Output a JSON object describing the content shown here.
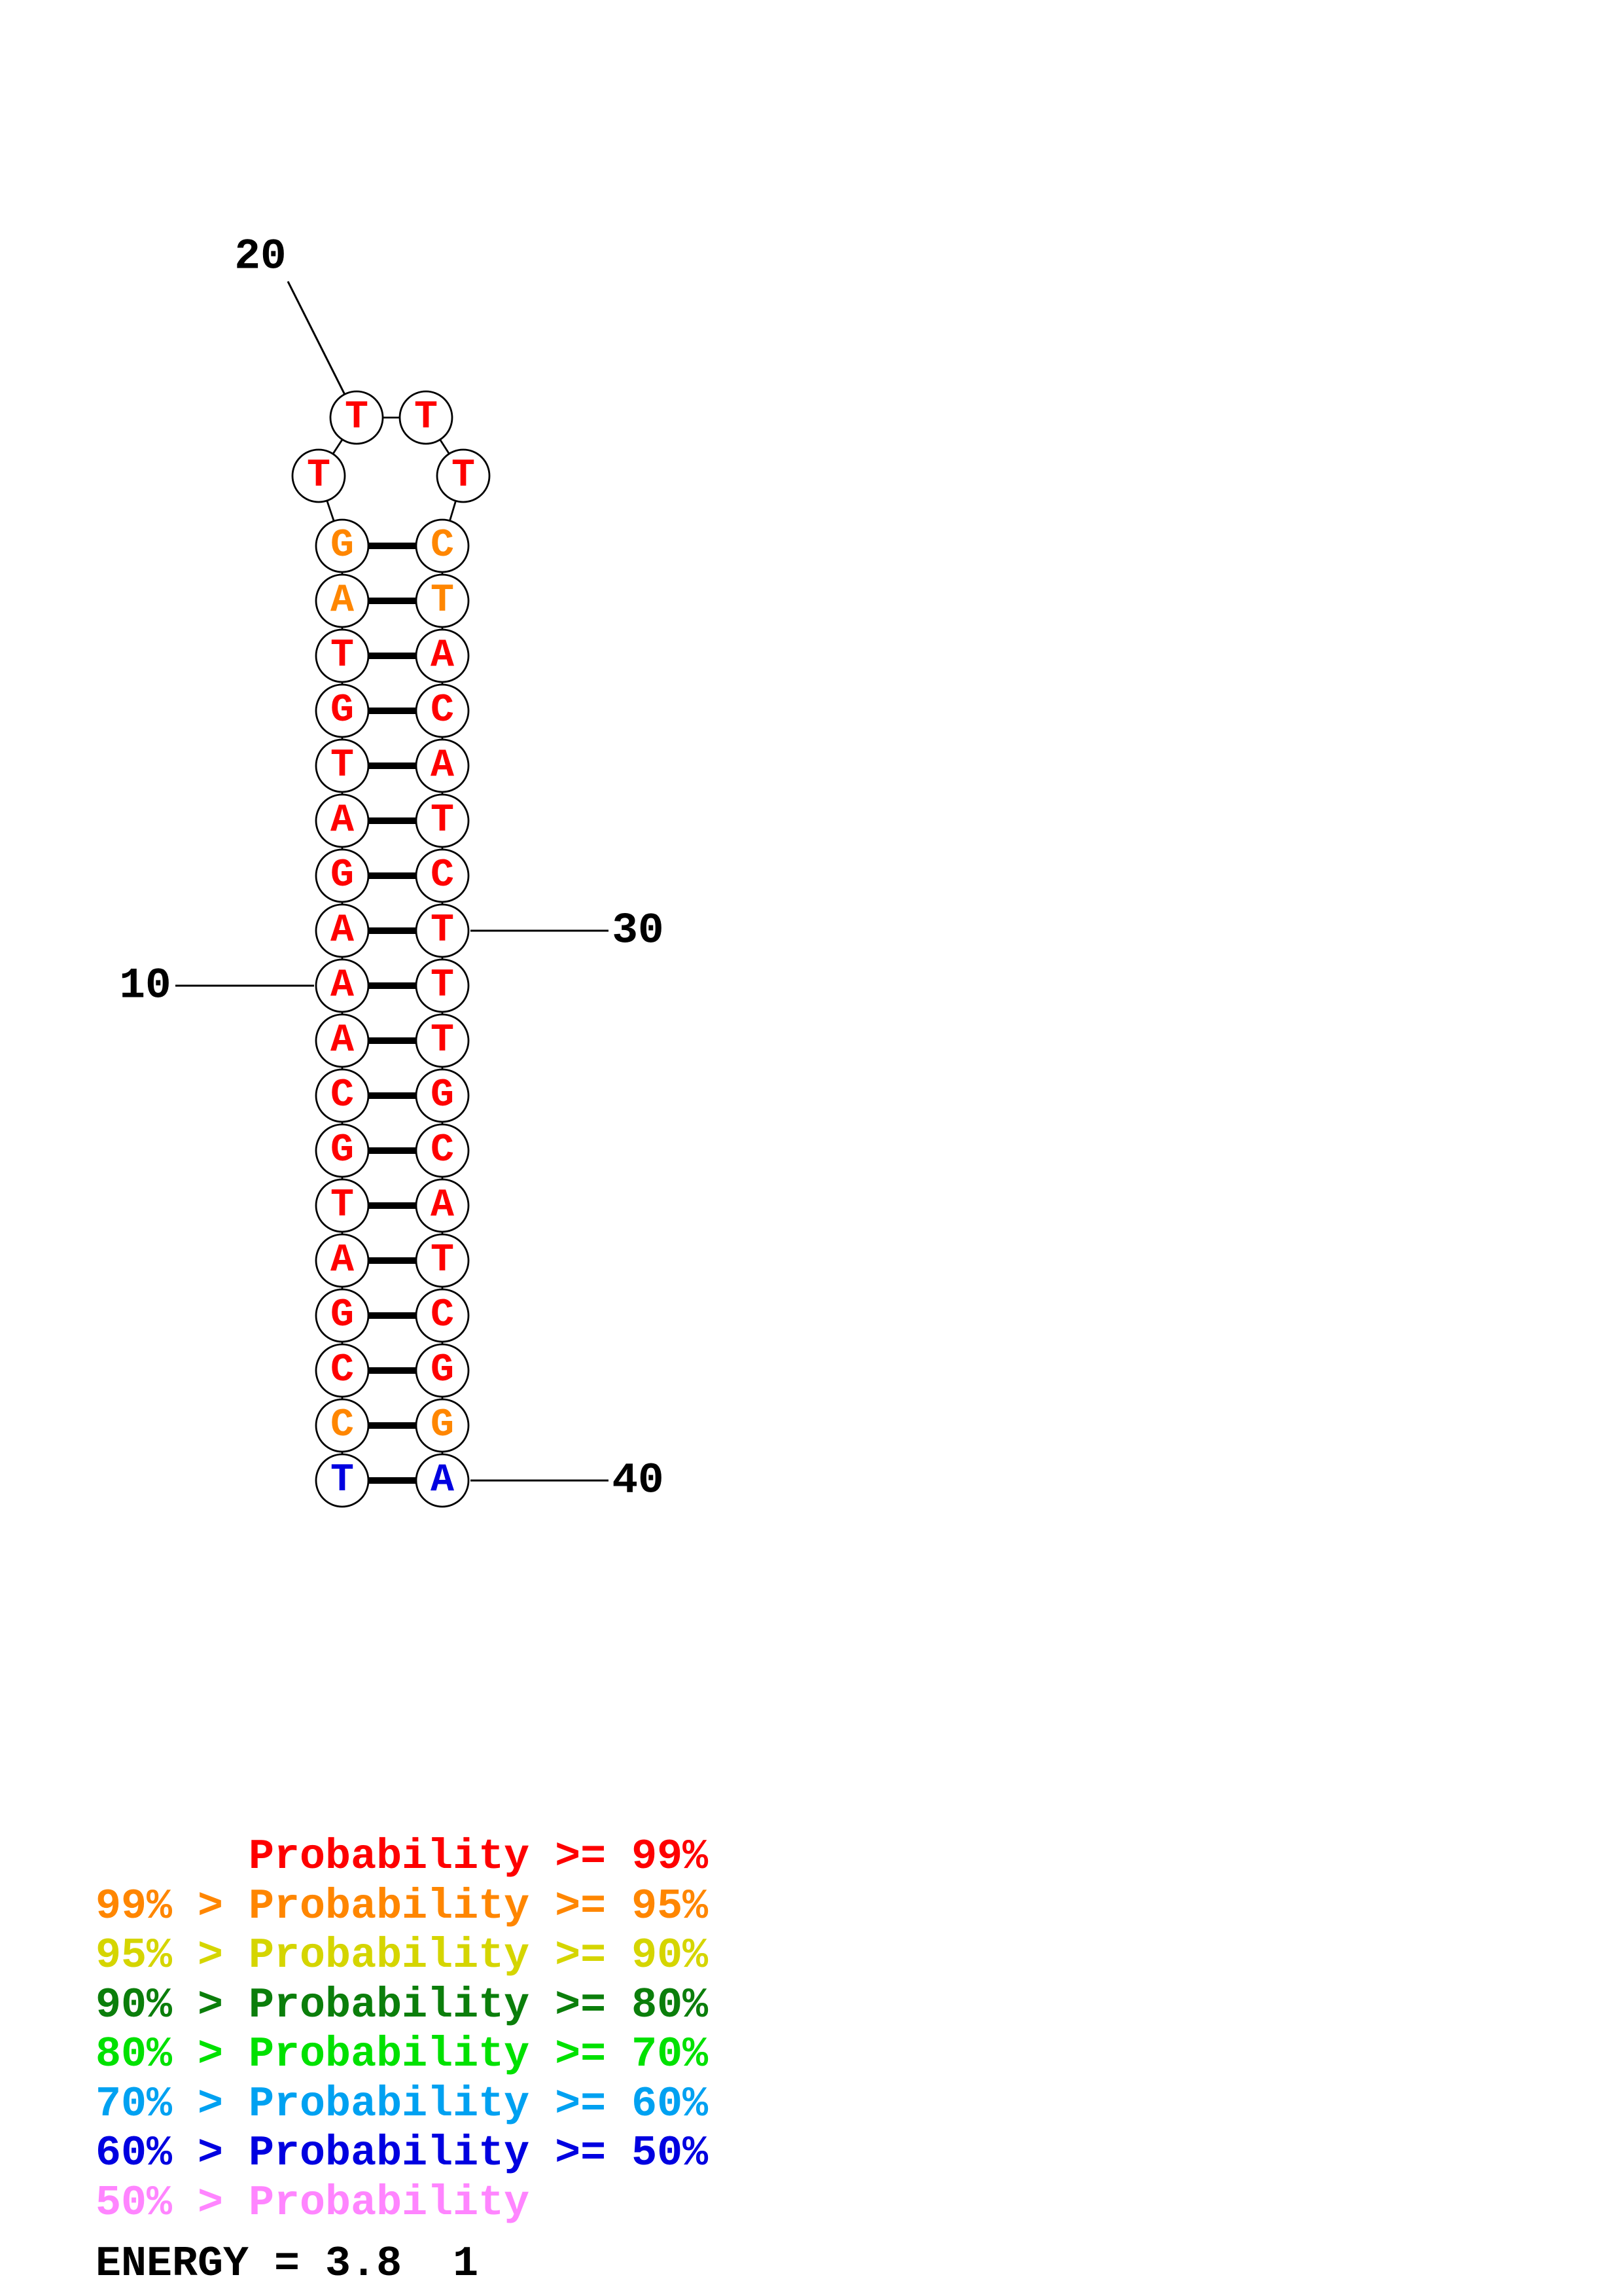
{
  "prob_colors": {
    "p99": "#fe0000",
    "p95_99": "#ff8600",
    "p90_95": "#d5d500",
    "p80_90": "#0b7e0b",
    "p70_80": "#00e100",
    "p60_70": "#00a1f1",
    "p50_60": "#0000e0",
    "below_50": "#ff85ff"
  },
  "structure": {
    "sequence_5to3": "TCCGATGCAAAGATGTAGTTTTCTACATCTTTGCATCGGA",
    "left_column_top_to_bottom": [
      {
        "base": "G",
        "prob": "p95_99"
      },
      {
        "base": "A",
        "prob": "p95_99"
      },
      {
        "base": "T",
        "prob": "p99"
      },
      {
        "base": "G",
        "prob": "p99"
      },
      {
        "base": "T",
        "prob": "p99"
      },
      {
        "base": "A",
        "prob": "p99"
      },
      {
        "base": "G",
        "prob": "p99"
      },
      {
        "base": "A",
        "prob": "p99"
      },
      {
        "base": "A",
        "prob": "p99"
      },
      {
        "base": "A",
        "prob": "p99"
      },
      {
        "base": "C",
        "prob": "p99"
      },
      {
        "base": "G",
        "prob": "p99"
      },
      {
        "base": "T",
        "prob": "p99"
      },
      {
        "base": "A",
        "prob": "p99"
      },
      {
        "base": "G",
        "prob": "p99"
      },
      {
        "base": "C",
        "prob": "p99"
      },
      {
        "base": "C",
        "prob": "p95_99"
      },
      {
        "base": "T",
        "prob": "p50_60"
      }
    ],
    "right_column_top_to_bottom": [
      {
        "base": "C",
        "prob": "p95_99"
      },
      {
        "base": "T",
        "prob": "p95_99"
      },
      {
        "base": "A",
        "prob": "p99"
      },
      {
        "base": "C",
        "prob": "p99"
      },
      {
        "base": "A",
        "prob": "p99"
      },
      {
        "base": "T",
        "prob": "p99"
      },
      {
        "base": "C",
        "prob": "p99"
      },
      {
        "base": "T",
        "prob": "p99"
      },
      {
        "base": "T",
        "prob": "p99"
      },
      {
        "base": "T",
        "prob": "p99"
      },
      {
        "base": "G",
        "prob": "p99"
      },
      {
        "base": "C",
        "prob": "p99"
      },
      {
        "base": "A",
        "prob": "p99"
      },
      {
        "base": "T",
        "prob": "p99"
      },
      {
        "base": "C",
        "prob": "p99"
      },
      {
        "base": "G",
        "prob": "p99"
      },
      {
        "base": "G",
        "prob": "p95_99"
      },
      {
        "base": "A",
        "prob": "p50_60"
      }
    ],
    "loop_left_to_right": [
      {
        "base": "T",
        "prob": "p99"
      },
      {
        "base": "T",
        "prob": "p99"
      },
      {
        "base": "T",
        "prob": "p99"
      },
      {
        "base": "T",
        "prob": "p99"
      }
    ]
  },
  "position_labels": [
    {
      "text": "20",
      "anchor": "loop-top-left"
    },
    {
      "text": "10",
      "anchor": "left-row-9"
    },
    {
      "text": "30",
      "anchor": "right-row-8"
    },
    {
      "text": "40",
      "anchor": "right-row-18"
    }
  ],
  "legend": {
    "rows": [
      {
        "text": "      Probability >= 99%",
        "color_key": "p99"
      },
      {
        "text": "99% > Probability >= 95%",
        "color_key": "p95_99"
      },
      {
        "text": "95% > Probability >= 90%",
        "color_key": "p90_95"
      },
      {
        "text": "90% > Probability >= 80%",
        "color_key": "p80_90"
      },
      {
        "text": "80% > Probability >= 70%",
        "color_key": "p70_80"
      },
      {
        "text": "70% > Probability >= 60%",
        "color_key": "p60_70"
      },
      {
        "text": "60% > Probability >= 50%",
        "color_key": "p50_60"
      },
      {
        "text": "50% > Probability",
        "color_key": "below_50"
      }
    ],
    "energy": "ENERGY = 3.8  1"
  }
}
